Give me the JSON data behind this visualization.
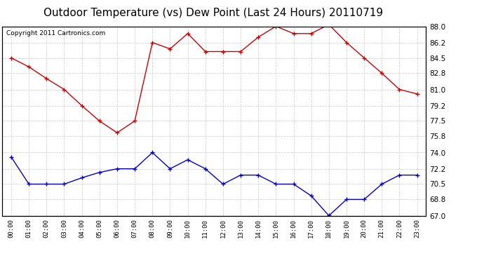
{
  "title": "Outdoor Temperature (vs) Dew Point (Last 24 Hours) 20110719",
  "copyright": "Copyright 2011 Cartronics.com",
  "hours": [
    "00:00",
    "01:00",
    "02:00",
    "03:00",
    "04:00",
    "05:00",
    "06:00",
    "07:00",
    "08:00",
    "09:00",
    "10:00",
    "11:00",
    "12:00",
    "13:00",
    "14:00",
    "15:00",
    "16:00",
    "17:00",
    "18:00",
    "19:00",
    "20:00",
    "21:00",
    "22:00",
    "23:00"
  ],
  "temp": [
    84.5,
    83.5,
    82.2,
    81.0,
    79.2,
    77.5,
    76.2,
    77.5,
    86.2,
    85.5,
    87.2,
    85.2,
    85.2,
    85.2,
    86.8,
    88.0,
    87.2,
    87.2,
    88.2,
    86.2,
    84.5,
    82.8,
    81.0,
    80.5
  ],
  "dewpoint": [
    73.5,
    70.5,
    70.5,
    70.5,
    71.2,
    71.8,
    72.2,
    72.2,
    74.0,
    72.2,
    73.2,
    72.2,
    70.5,
    71.5,
    71.5,
    70.5,
    70.5,
    69.2,
    67.0,
    68.8,
    68.8,
    70.5,
    71.5,
    71.5
  ],
  "ylim": [
    67.0,
    88.0
  ],
  "yticks": [
    67.0,
    68.8,
    70.5,
    72.2,
    74.0,
    75.8,
    77.5,
    79.2,
    81.0,
    82.8,
    84.5,
    86.2,
    88.0
  ],
  "temp_color": "#cc0000",
  "dew_color": "#0000cc",
  "bg_color": "#ffffff",
  "grid_color": "#c8c8c8",
  "title_fontsize": 11,
  "copyright_fontsize": 6.5
}
